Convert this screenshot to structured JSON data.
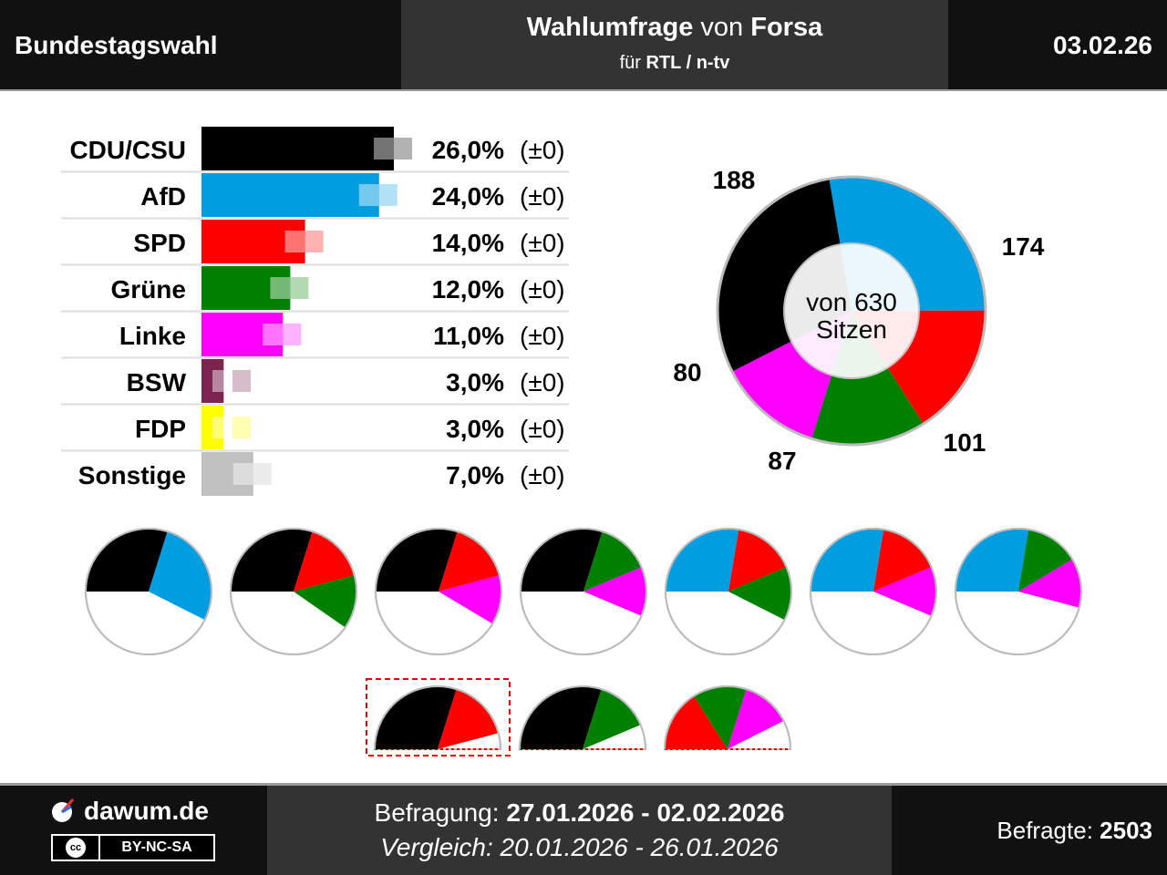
{
  "header": {
    "title": "Bundestagswahl",
    "poll_word": "Wahlumfrage",
    "von_word": "von",
    "institute": "Forsa",
    "fuer_word": "für",
    "client": "RTL / n-tv",
    "date": "03.02.26"
  },
  "footer": {
    "brand": "dawum.de",
    "license_cc": "cc",
    "license_text": "BY-NC-SA",
    "survey_label": "Befragung:",
    "survey_period": "27.01.2026 - 02.02.2026",
    "compare_label": "Vergleich:",
    "compare_period": "20.01.2026 - 26.01.2026",
    "respondents_label": "Befragte:",
    "respondents_value": "2503"
  },
  "chart_data": [
    {
      "type": "bar",
      "categories": [
        "CDU/CSU",
        "AfD",
        "SPD",
        "Grüne",
        "Linke",
        "BSW",
        "FDP",
        "Sonstige"
      ],
      "values": [
        26.0,
        24.0,
        14.0,
        12.0,
        11.0,
        3.0,
        3.0,
        7.0
      ],
      "value_labels": [
        "26,0%",
        "24,0%",
        "14,0%",
        "12,0%",
        "11,0%",
        "3,0%",
        "3,0%",
        "7,0%"
      ],
      "change_labels": [
        "(±0)",
        "(±0)",
        "(±0)",
        "(±0)",
        "(±0)",
        "(±0)",
        "(±0)",
        "(±0)"
      ],
      "colors": [
        "#000000",
        "#009ee0",
        "#ff0000",
        "#008000",
        "#ff00ff",
        "#7b2450",
        "#ffff00",
        "#c0c0c0"
      ],
      "previous_values": [
        26.0,
        24.0,
        14.0,
        12.0,
        11.0,
        3.0,
        3.0,
        7.0
      ]
    },
    {
      "type": "pie",
      "center_label_1": "von 630",
      "center_label_2": "Sitzen",
      "total_seats": 630,
      "segments": [
        {
          "party": "CDU/CSU",
          "seats": 188,
          "label": "188",
          "color": "#000000"
        },
        {
          "party": "AfD",
          "seats": 174,
          "label": "174",
          "color": "#009ee0"
        },
        {
          "party": "SPD",
          "seats": 101,
          "label": "101",
          "color": "#ff0000"
        },
        {
          "party": "Grüne",
          "seats": 87,
          "label": "87",
          "color": "#008000"
        },
        {
          "party": "Linke",
          "seats": 80,
          "label": "80",
          "color": "#ff00ff"
        }
      ]
    }
  ],
  "coalitions": [
    {
      "parties": [
        "CDU/CSU",
        "AfD"
      ],
      "size": "full"
    },
    {
      "parties": [
        "CDU/CSU",
        "SPD",
        "Grüne"
      ],
      "size": "full"
    },
    {
      "parties": [
        "CDU/CSU",
        "SPD",
        "Linke"
      ],
      "size": "full"
    },
    {
      "parties": [
        "CDU/CSU",
        "Grüne",
        "Linke"
      ],
      "size": "full"
    },
    {
      "parties": [
        "AfD",
        "SPD",
        "Grüne"
      ],
      "size": "full"
    },
    {
      "parties": [
        "AfD",
        "SPD",
        "Linke"
      ],
      "size": "full"
    },
    {
      "parties": [
        "AfD",
        "Grüne",
        "Linke"
      ],
      "size": "full"
    },
    {
      "parties": [
        "CDU/CSU",
        "SPD"
      ],
      "size": "half",
      "highlighted": true
    },
    {
      "parties": [
        "CDU/CSU",
        "Grüne"
      ],
      "size": "half",
      "highlighted": false
    },
    {
      "parties": [
        "SPD",
        "Grüne",
        "Linke"
      ],
      "size": "half",
      "highlighted": false
    }
  ]
}
